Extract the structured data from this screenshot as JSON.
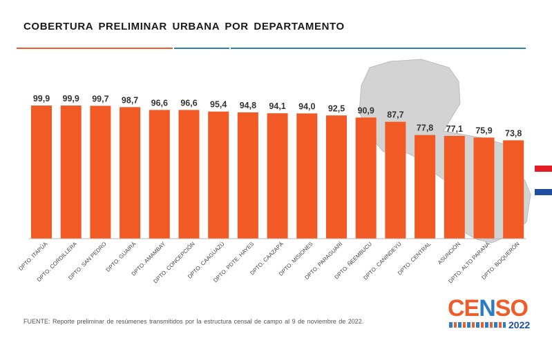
{
  "page": {
    "title": "COBERTURA PRELIMINAR URBANA POR DEPARTAMENTO",
    "source": "FUENTE: Reporte preliminar de resúmenes transmitidos por la estructura censal de campo al 9 de noviembre de 2022."
  },
  "logo": {
    "word_parts": [
      "CE",
      "N",
      "SO"
    ],
    "year": "2022",
    "colors": {
      "primary": "#ef5b2a",
      "secondary": "#2b7ec4",
      "dark": "#1e4fa0"
    }
  },
  "colors": {
    "bar": "#f15a24",
    "accent_orange": "#ef5b2a",
    "accent_blue": "#2b7ec4",
    "flag_red": "#e31b23",
    "flag_blue": "#1f4ea1",
    "map": "#d3d3d3"
  },
  "chart_data": {
    "type": "bar",
    "title": "COBERTURA PRELIMINAR URBANA POR DEPARTAMENTO",
    "xlabel": "",
    "ylabel": "",
    "ylim": [
      0,
      100
    ],
    "grid": false,
    "categories": [
      "DPTO. ITAPÚA",
      "DPTO. CORDILLERA",
      "DPTO. SAN PEDRO",
      "DPTO. GUAIRÁ",
      "DPTO. AMAMBAY",
      "DPTO. CONCEPCIÓN",
      "DPTO. CAAGUAZÚ",
      "DPTO. PDTE. HAYES",
      "DPTO. CAAZAPÁ",
      "DPTO. MISIONES",
      "DPTO. PARAGUARÍ",
      "DPTO. ÑEEMBUCU",
      "DPTO. CANINDEYÚ",
      "DPTO. CENTRAL",
      "ASUNCIÓN",
      "DPTO. ALTO PARANÁ",
      "DPTO. BOQUERÓN"
    ],
    "values": [
      99.9,
      99.9,
      99.7,
      98.7,
      96.6,
      96.6,
      95.4,
      94.8,
      94.1,
      94.0,
      92.5,
      90.9,
      87.7,
      77.8,
      77.1,
      75.9,
      73.8
    ],
    "labels": [
      "99,9",
      "99,9",
      "99,7",
      "98,7",
      "96,6",
      "96,6",
      "95,4",
      "94,8",
      "94,1",
      "94,0",
      "92,5",
      "90,9",
      "87,7",
      "77,8",
      "77,1",
      "75,9",
      "73,8"
    ]
  }
}
